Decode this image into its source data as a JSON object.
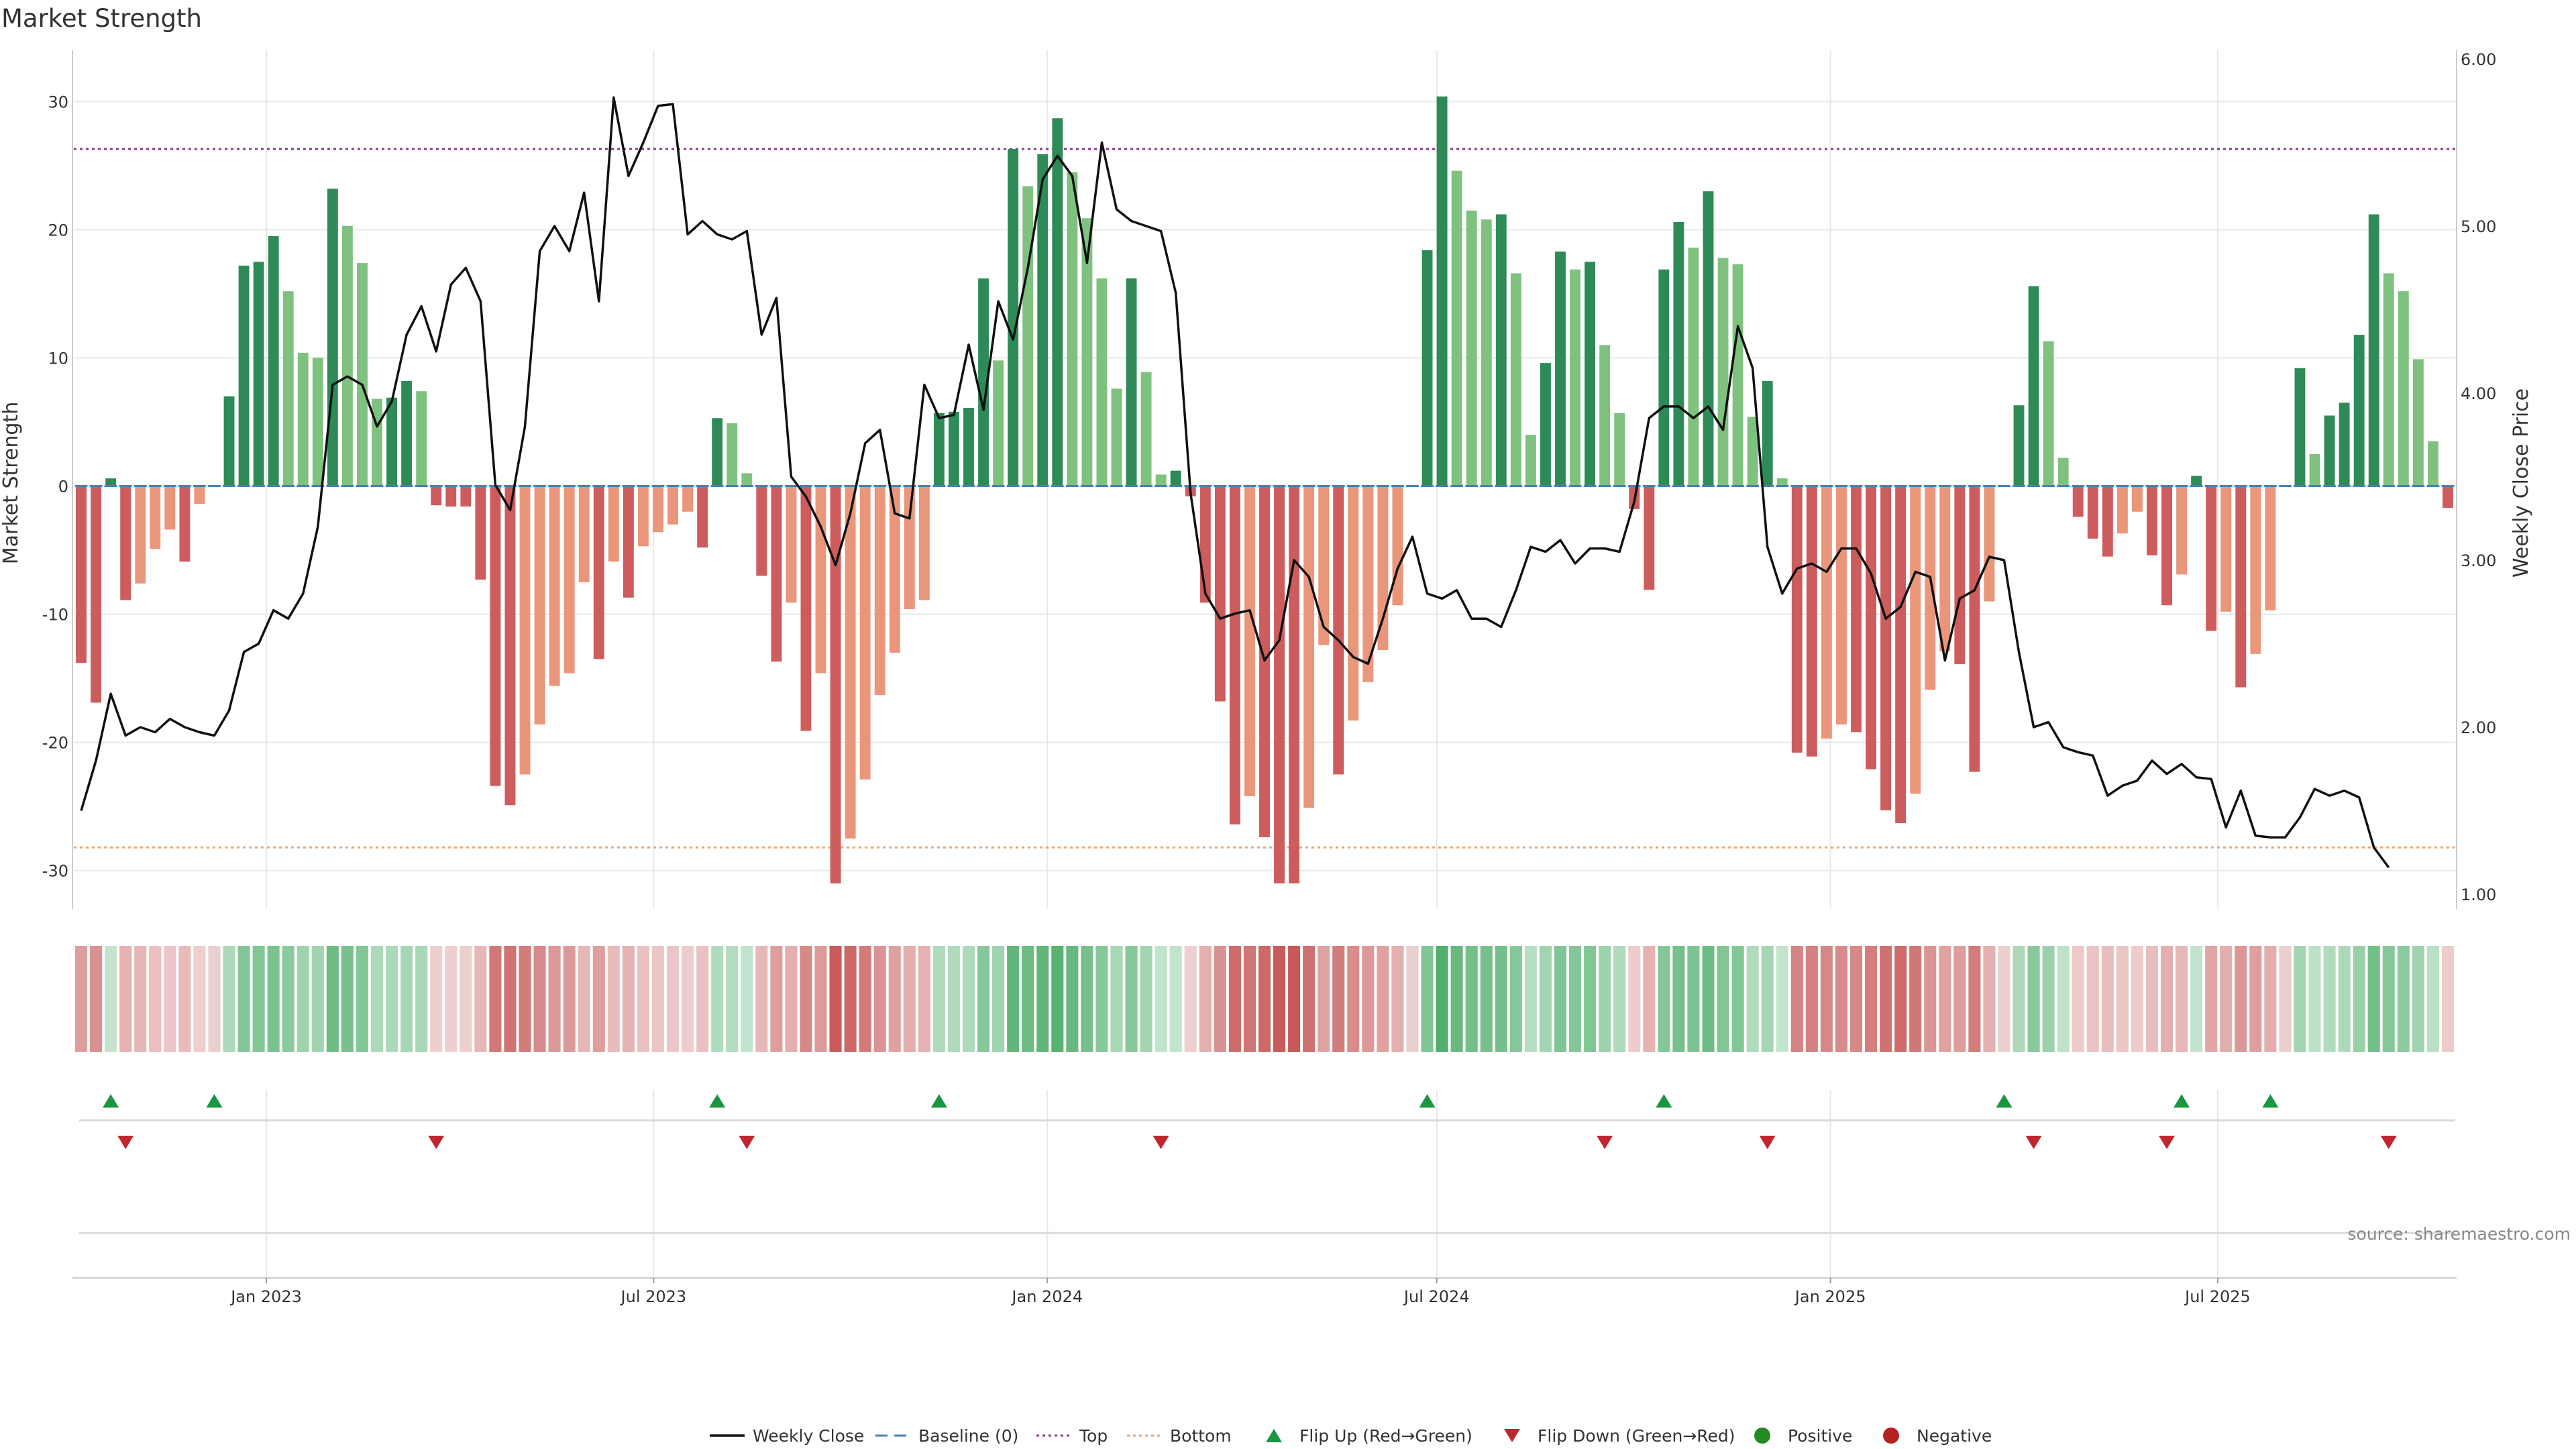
{
  "chart_data": {
    "type": "bar",
    "title": "Market Strength",
    "ylabel": "Market Strength",
    "y2label": "Weekly Close Price",
    "ylim": [
      -33,
      34
    ],
    "y2lim": [
      1.0,
      6.0
    ],
    "yticks": [
      -30,
      -20,
      -10,
      0,
      10,
      20,
      30
    ],
    "y2ticks": [
      "1.00",
      "2.00",
      "3.00",
      "4.00",
      "5.00",
      "6.00"
    ],
    "top_level": 26.3,
    "bottom_level": -28.2,
    "start_date": "2022-10-03",
    "end_date": "2025-10-20",
    "xticks": [
      {
        "label": "Jan 2023",
        "date": "2023-01-01"
      },
      {
        "label": "Jul 2023",
        "date": "2023-07-01"
      },
      {
        "label": "Jan 2024",
        "date": "2024-01-01"
      },
      {
        "label": "Jul 2024",
        "date": "2024-07-01"
      },
      {
        "label": "Jan 2025",
        "date": "2025-01-01"
      },
      {
        "label": "Jul 2025",
        "date": "2025-07-01"
      }
    ],
    "strength": [
      -13.8,
      -16.9,
      0.6,
      -8.9,
      -7.6,
      -4.9,
      -3.4,
      -5.9,
      -1.4,
      0.0,
      7.0,
      17.2,
      17.5,
      19.5,
      15.2,
      10.4,
      10.0,
      23.2,
      20.3,
      17.4,
      6.8,
      6.9,
      8.2,
      7.4,
      -1.5,
      -1.6,
      -1.6,
      -7.3,
      -23.4,
      -24.9,
      -22.5,
      -18.6,
      -15.6,
      -14.6,
      -7.5,
      -13.5,
      -5.9,
      -8.7,
      -4.7,
      -3.6,
      -3.0,
      -2.0,
      -4.8,
      5.3,
      4.9,
      1.0,
      -7.0,
      -13.7,
      -9.1,
      -19.1,
      -14.6,
      -31.0,
      -27.5,
      -22.9,
      -16.3,
      -13.0,
      -9.6,
      -8.9,
      5.7,
      5.8,
      6.1,
      16.2,
      9.8,
      26.3,
      23.4,
      25.9,
      28.7,
      24.5,
      20.9,
      16.2,
      7.6,
      16.2,
      8.9,
      0.9,
      1.2,
      -0.8,
      -9.1,
      -16.8,
      -26.4,
      -24.2,
      -27.4,
      -31.0,
      -31.0,
      -25.1,
      -12.4,
      -22.5,
      -18.3,
      -15.3,
      -12.8,
      -9.3,
      0.0,
      18.4,
      30.4,
      24.6,
      21.5,
      20.8,
      21.2,
      16.6,
      4.0,
      9.6,
      18.3,
      16.9,
      17.5,
      11.0,
      5.7,
      -1.8,
      -8.1,
      16.9,
      20.6,
      18.6,
      23.0,
      17.8,
      17.3,
      5.4,
      8.2,
      0.6,
      -20.8,
      -21.1,
      -19.7,
      -18.6,
      -19.2,
      -22.1,
      -25.3,
      -26.3,
      -24.0,
      -15.9,
      -12.9,
      -13.9,
      -22.3,
      -9.0,
      0.0,
      6.3,
      15.6,
      11.3,
      2.2,
      -2.4,
      -4.1,
      -5.5,
      -3.7,
      -2.0,
      -5.4,
      -9.3,
      -6.9,
      0.8,
      -11.3,
      -9.8,
      -15.7,
      -13.1,
      -9.7,
      0.0,
      9.2,
      2.5,
      5.5,
      6.5,
      11.8,
      21.2,
      16.6,
      15.2,
      9.9,
      3.5,
      -1.7
    ],
    "weekly_close": [
      1.5,
      1.8,
      2.2,
      1.95,
      2.0,
      1.97,
      2.05,
      2.0,
      1.97,
      1.95,
      2.1,
      2.45,
      2.5,
      2.7,
      2.65,
      2.8,
      3.2,
      4.05,
      4.1,
      4.05,
      3.8,
      3.95,
      4.35,
      4.52,
      4.25,
      4.65,
      4.75,
      4.55,
      3.45,
      3.3,
      3.8,
      4.85,
      5.0,
      4.85,
      5.2,
      4.55,
      5.77,
      5.3,
      5.5,
      5.72,
      5.73,
      4.95,
      5.03,
      4.95,
      4.92,
      4.97,
      4.35,
      4.57,
      3.5,
      3.38,
      3.2,
      2.97,
      3.28,
      3.7,
      3.78,
      3.28,
      3.25,
      4.05,
      3.85,
      3.87,
      4.29,
      3.9,
      4.55,
      4.32,
      4.75,
      5.28,
      5.42,
      5.3,
      4.78,
      5.5,
      5.1,
      5.03,
      5.0,
      4.97,
      4.6,
      3.4,
      2.8,
      2.65,
      2.68,
      2.7,
      2.4,
      2.52,
      3.0,
      2.9,
      2.6,
      2.52,
      2.42,
      2.38,
      2.65,
      2.95,
      3.14,
      2.8,
      2.77,
      2.82,
      2.65,
      2.65,
      2.6,
      2.82,
      3.08,
      3.05,
      3.12,
      2.98,
      3.07,
      3.07,
      3.05,
      3.35,
      3.85,
      3.92,
      3.92,
      3.85,
      3.92,
      3.78,
      4.4,
      4.15,
      3.08,
      2.8,
      2.95,
      2.98,
      2.93,
      3.07,
      3.07,
      2.92,
      2.65,
      2.72,
      2.93,
      2.9,
      2.4,
      2.77,
      2.82,
      3.02,
      3.0,
      2.45,
      2.0,
      2.03,
      1.88,
      1.85,
      1.83,
      1.59,
      1.65,
      1.68,
      1.8,
      1.72,
      1.78,
      1.7,
      1.69,
      1.4,
      1.62,
      1.35,
      1.34,
      1.34,
      1.46,
      1.63,
      1.59,
      1.62,
      1.58,
      1.28,
      1.16
    ],
    "flip_up_weeks": [
      2,
      9,
      43,
      58,
      91,
      107,
      130,
      142,
      148
    ],
    "flip_down_weeks": [
      3,
      24,
      45,
      73,
      103,
      114,
      132,
      141,
      156
    ],
    "series": [
      {
        "name": "Weekly Close",
        "style": "line"
      },
      {
        "name": "Baseline (0)",
        "style": "dashed"
      },
      {
        "name": "Top",
        "style": "dotted"
      },
      {
        "name": "Bottom",
        "style": "dotted"
      },
      {
        "name": "Flip Up (Red→Green)",
        "style": "triangle-up"
      },
      {
        "name": "Flip Down (Green→Red)",
        "style": "triangle-down"
      },
      {
        "name": "Positive",
        "style": "dot"
      },
      {
        "name": "Negative",
        "style": "dot"
      }
    ],
    "legend_position": "bottom-center",
    "source": "source: sharemaestro.com"
  },
  "colors": {
    "pos_strong": "#2e8b57",
    "pos_light": "#7fc17f",
    "neg_strong": "#cd5c5c",
    "neg_light": "#e9967a",
    "line": "#111111",
    "baseline": "#4682b4",
    "top": "#8b3a8b",
    "bottom": "#f4a460",
    "flip_up": "#1a9641",
    "flip_down": "#c0262d",
    "positive_dot": "#228b22",
    "negative_dot": "#b22222",
    "grid": "#e8e8e8",
    "axis": "#cccccc"
  }
}
